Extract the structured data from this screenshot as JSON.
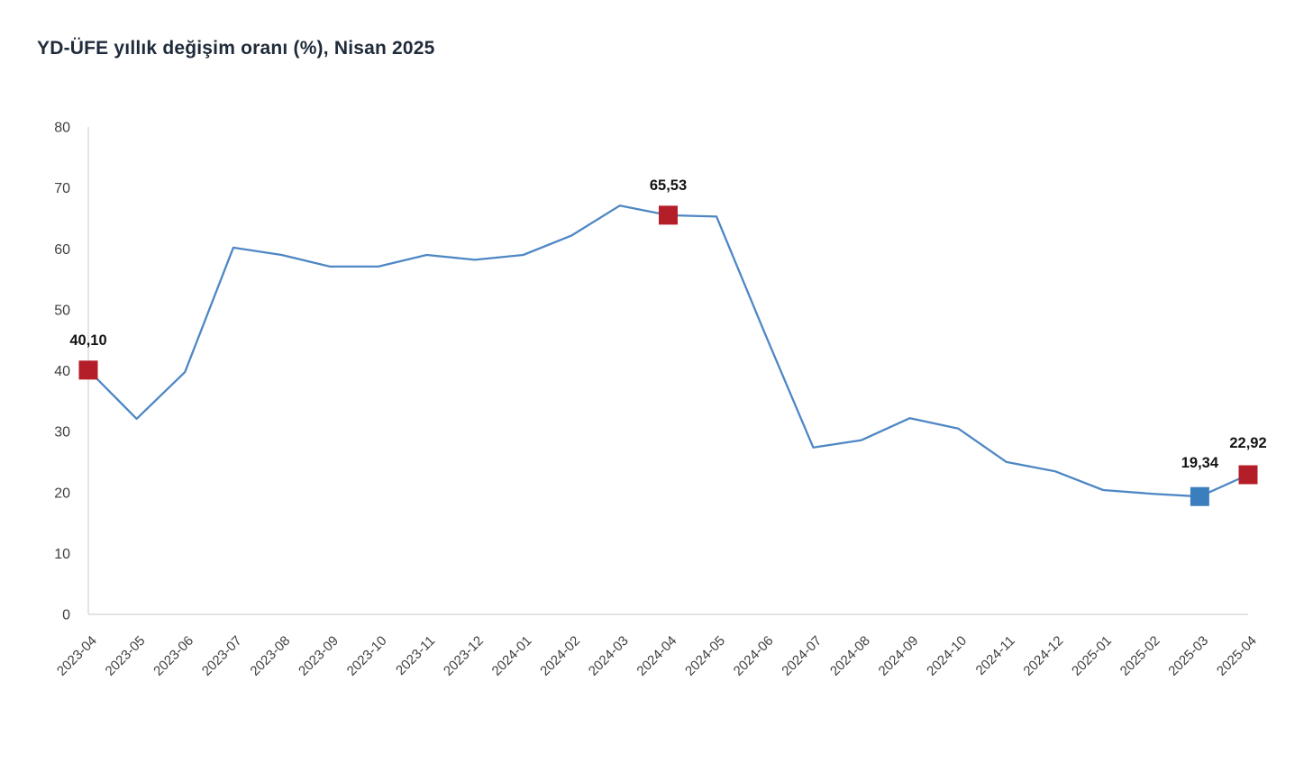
{
  "header": {
    "title": "YD-ÜFE yıllık değişim oranı (%), Nisan 2025"
  },
  "chart_data": {
    "type": "line",
    "title": "YD-ÜFE yıllık değişim oranı (%), Nisan 2025",
    "x": [
      "2023-04",
      "2023-05",
      "2023-06",
      "2023-07",
      "2023-08",
      "2023-09",
      "2023-10",
      "2023-11",
      "2023-12",
      "2024-01",
      "2024-02",
      "2024-03",
      "2024-04",
      "2024-05",
      "2024-06",
      "2024-07",
      "2024-08",
      "2024-09",
      "2024-10",
      "2024-11",
      "2024-12",
      "2025-01",
      "2025-02",
      "2025-03",
      "2025-04"
    ],
    "values": [
      40.1,
      32.1,
      39.8,
      60.2,
      59.0,
      57.1,
      57.1,
      59.0,
      58.2,
      59.0,
      62.2,
      67.1,
      65.53,
      65.3,
      46.1,
      27.4,
      28.6,
      32.2,
      30.5,
      25.0,
      23.5,
      20.4,
      19.8,
      19.34,
      22.92
    ],
    "ylim": [
      0,
      80
    ],
    "yticks": [
      0,
      10,
      20,
      30,
      40,
      50,
      60,
      70,
      80
    ],
    "grid": false,
    "legend_position": "none",
    "line_color": "#4e87c4",
    "axis_color": "#d9d9d9",
    "tick_label_color": "#3f3f3f",
    "data_label_color": "#141414",
    "annotations": [
      {
        "x": "2023-04",
        "index": 0,
        "label": "40,10",
        "value": 40.1,
        "marker_color": "#b41e28",
        "label_dy": -28
      },
      {
        "x": "2024-04",
        "index": 12,
        "label": "65,53",
        "value": 65.53,
        "marker_color": "#b41e28",
        "label_dy": -28
      },
      {
        "x": "2025-03",
        "index": 23,
        "label": "19,34",
        "value": 19.34,
        "marker_color": "#3b7ebd",
        "label_dy": -32
      },
      {
        "x": "2025-04",
        "index": 24,
        "label": "22,92",
        "value": 22.92,
        "marker_color": "#b41e28",
        "label_dy": -30
      }
    ]
  }
}
